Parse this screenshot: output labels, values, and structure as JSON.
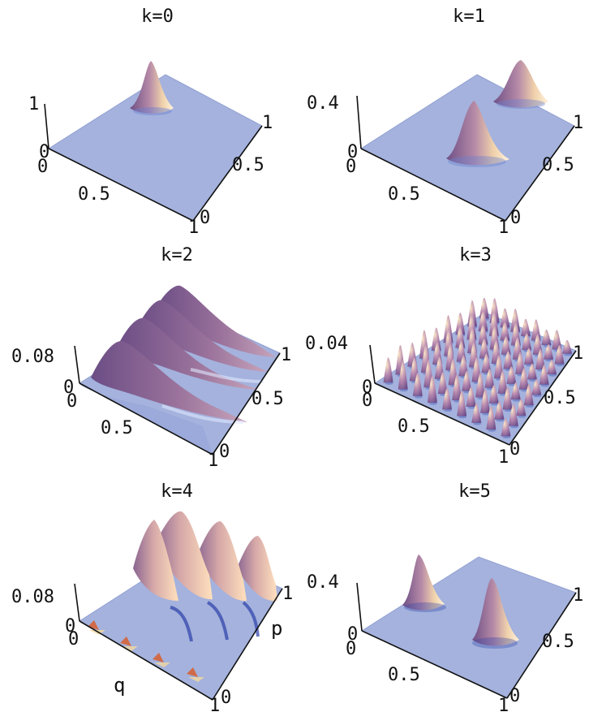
{
  "figure": {
    "panels": [
      {
        "title": "k=0",
        "z_tick": "1",
        "z_zero": "0",
        "origin_label": "0",
        "q_mid_label": "0.5",
        "q_end_label": "1",
        "p_start_label": "0",
        "p_mid_label": "0.5",
        "p_end_label": "1",
        "surface": "single narrow peak near q=0.5, p=0.75"
      },
      {
        "title": "k=1",
        "z_tick": "0.4",
        "z_zero": "0",
        "origin_label": "0",
        "q_mid_label": "0.5",
        "q_end_label": "1",
        "p_start_label": "0",
        "p_mid_label": "0.5",
        "p_end_label": "1",
        "surface": "two peaks"
      },
      {
        "title": "k=2",
        "z_tick": "0.08",
        "z_zero": "0",
        "origin_label": "0",
        "q_mid_label": "0.5",
        "q_end_label": "1",
        "p_start_label": "0",
        "p_mid_label": "0.5",
        "p_end_label": "1",
        "surface": "four parallel ridges"
      },
      {
        "title": "k=3",
        "z_tick": "0.04",
        "z_zero": "0",
        "origin_label": "0",
        "q_mid_label": "0.5",
        "q_end_label": "1",
        "p_start_label": "0",
        "p_mid_label": "0.5",
        "p_end_label": "1",
        "surface": "dense grid of small peaks"
      },
      {
        "title": "k=4",
        "z_tick": "0.08",
        "z_zero": "0",
        "origin_label": "0",
        "q_mid_label": "",
        "q_end_label": "1",
        "p_start_label": "0",
        "p_mid_label": "",
        "p_end_label": "1",
        "q_axis_title": "q",
        "p_axis_title": "p",
        "surface": "four sharp ridges"
      },
      {
        "title": "k=5",
        "z_tick": "0.4",
        "z_zero": "0",
        "origin_label": "0",
        "q_mid_label": "0.5",
        "q_end_label": "1",
        "p_start_label": "0",
        "p_mid_label": "0.5",
        "p_end_label": "1",
        "surface": "two peaks"
      }
    ],
    "colors": {
      "plane": "#a4b2dd",
      "plane_edge": "#8e9ccc",
      "peak_dark": "#6e4f86",
      "peak_mid": "#b989a8",
      "peak_light": "#f3d6a8",
      "shadow_blue": "#3346a8",
      "axis": "#111111"
    }
  }
}
